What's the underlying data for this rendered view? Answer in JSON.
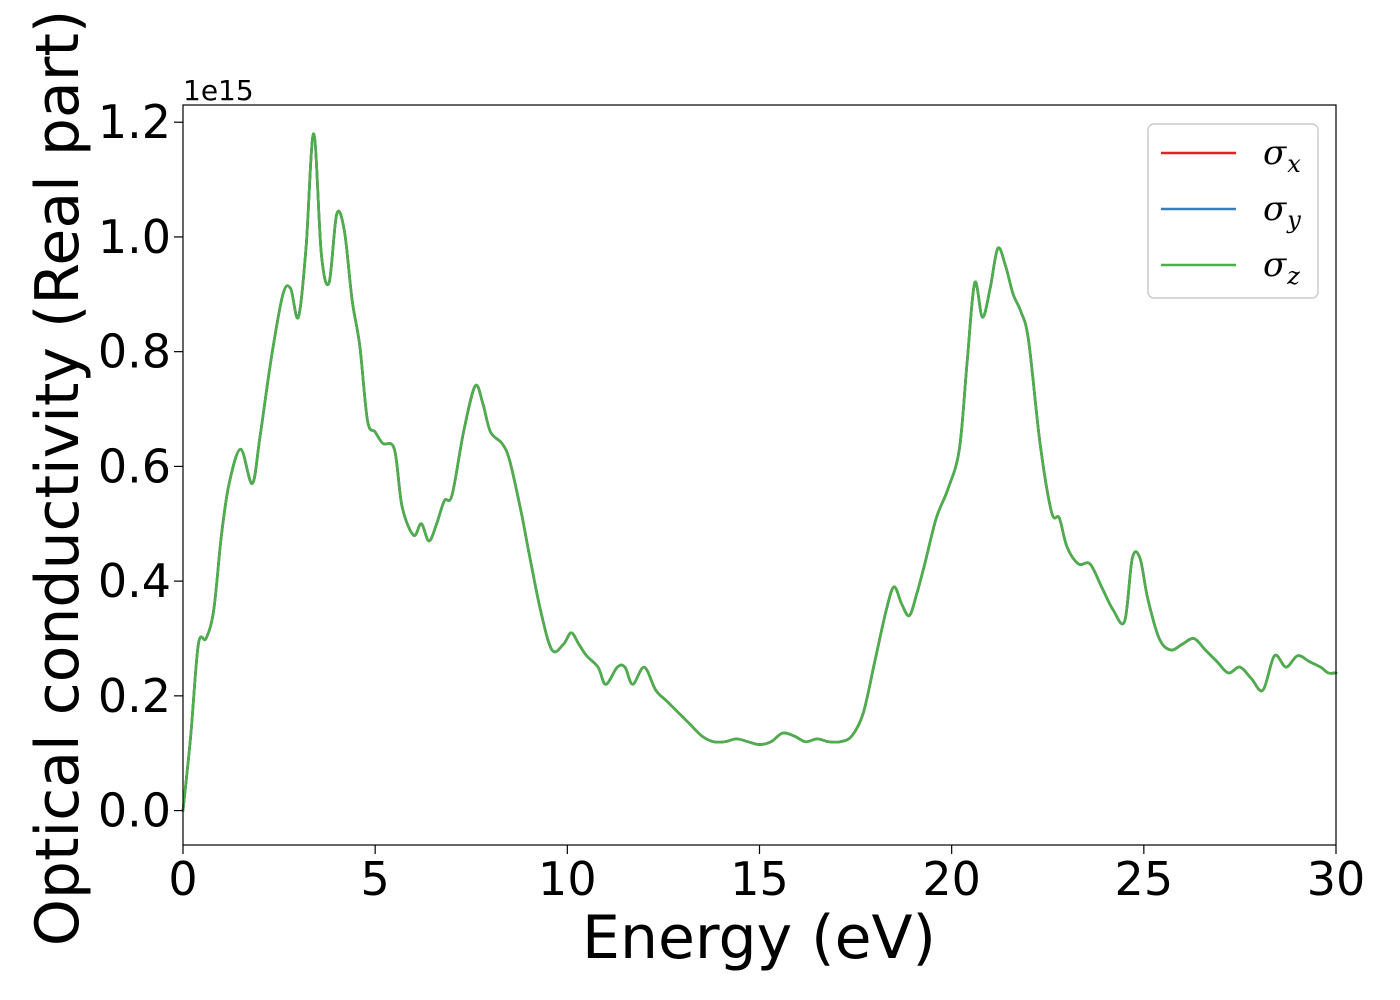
{
  "chart_data": {
    "type": "line",
    "title": "",
    "xlabel": "Energy (eV)",
    "ylabel": "Optical conductivity (Real part)",
    "y_offset_text": "1e15",
    "xlim": [
      0,
      30
    ],
    "ylim": [
      -0.06,
      1.23
    ],
    "x_ticks": [
      0,
      5,
      10,
      15,
      20,
      25,
      30
    ],
    "x_tick_labels": [
      "0",
      "5",
      "10",
      "15",
      "20",
      "25",
      "30"
    ],
    "y_ticks": [
      0.0,
      0.2,
      0.4,
      0.6,
      0.8,
      1.0,
      1.2
    ],
    "y_tick_labels": [
      "0.0",
      "0.2",
      "0.4",
      "0.6",
      "0.8",
      "1.0",
      "1.2"
    ],
    "grid": false,
    "legend_position": "top-right",
    "x": [
      0,
      0.2,
      0.4,
      0.6,
      0.8,
      1.0,
      1.2,
      1.5,
      1.8,
      2.0,
      2.3,
      2.6,
      2.8,
      3.0,
      3.2,
      3.4,
      3.6,
      3.8,
      4.0,
      4.2,
      4.4,
      4.6,
      4.8,
      5.0,
      5.2,
      5.5,
      5.7,
      6.0,
      6.2,
      6.4,
      6.6,
      6.8,
      7.0,
      7.3,
      7.6,
      7.8,
      8.0,
      8.3,
      8.5,
      8.8,
      9.0,
      9.3,
      9.6,
      9.9,
      10.1,
      10.3,
      10.5,
      10.8,
      11.0,
      11.3,
      11.5,
      11.7,
      12.0,
      12.3,
      12.6,
      12.9,
      13.2,
      13.5,
      13.8,
      14.1,
      14.4,
      14.7,
      15.0,
      15.3,
      15.6,
      15.9,
      16.2,
      16.5,
      16.8,
      17.1,
      17.4,
      17.7,
      18.0,
      18.3,
      18.5,
      18.7,
      18.9,
      19.1,
      19.3,
      19.6,
      19.9,
      20.2,
      20.4,
      20.6,
      20.8,
      21.0,
      21.2,
      21.4,
      21.6,
      21.8,
      22.0,
      22.3,
      22.6,
      22.8,
      23.0,
      23.3,
      23.6,
      23.9,
      24.2,
      24.5,
      24.7,
      24.9,
      25.1,
      25.4,
      25.7,
      26.0,
      26.3,
      26.6,
      26.9,
      27.2,
      27.5,
      27.8,
      28.1,
      28.4,
      28.7,
      29.0,
      29.3,
      29.6,
      29.8,
      30.0
    ],
    "series": [
      {
        "name": "σx",
        "color": "#d62728",
        "values": [
          0.0,
          0.13,
          0.29,
          0.3,
          0.35,
          0.48,
          0.57,
          0.63,
          0.57,
          0.65,
          0.79,
          0.9,
          0.91,
          0.86,
          0.98,
          1.18,
          0.97,
          0.92,
          1.04,
          1.01,
          0.89,
          0.81,
          0.68,
          0.66,
          0.64,
          0.63,
          0.53,
          0.48,
          0.5,
          0.47,
          0.5,
          0.54,
          0.55,
          0.66,
          0.74,
          0.71,
          0.66,
          0.64,
          0.61,
          0.52,
          0.45,
          0.35,
          0.28,
          0.29,
          0.31,
          0.29,
          0.27,
          0.25,
          0.22,
          0.25,
          0.25,
          0.22,
          0.25,
          0.21,
          0.19,
          0.17,
          0.15,
          0.13,
          0.12,
          0.12,
          0.125,
          0.12,
          0.115,
          0.12,
          0.135,
          0.13,
          0.12,
          0.125,
          0.12,
          0.12,
          0.13,
          0.17,
          0.26,
          0.35,
          0.39,
          0.36,
          0.34,
          0.38,
          0.43,
          0.51,
          0.56,
          0.63,
          0.78,
          0.92,
          0.86,
          0.91,
          0.98,
          0.95,
          0.9,
          0.87,
          0.82,
          0.64,
          0.52,
          0.51,
          0.46,
          0.43,
          0.43,
          0.39,
          0.35,
          0.33,
          0.44,
          0.44,
          0.37,
          0.3,
          0.28,
          0.29,
          0.3,
          0.28,
          0.26,
          0.24,
          0.25,
          0.23,
          0.21,
          0.27,
          0.25,
          0.27,
          0.26,
          0.25,
          0.24,
          0.24
        ]
      },
      {
        "name": "σy",
        "color": "#3a7cb8",
        "values": [
          0.0,
          0.13,
          0.29,
          0.3,
          0.35,
          0.48,
          0.57,
          0.63,
          0.57,
          0.65,
          0.79,
          0.9,
          0.91,
          0.86,
          0.98,
          1.18,
          0.97,
          0.92,
          1.04,
          1.01,
          0.89,
          0.81,
          0.68,
          0.66,
          0.64,
          0.63,
          0.53,
          0.48,
          0.5,
          0.47,
          0.5,
          0.54,
          0.55,
          0.66,
          0.74,
          0.71,
          0.66,
          0.64,
          0.61,
          0.52,
          0.45,
          0.35,
          0.28,
          0.29,
          0.31,
          0.29,
          0.27,
          0.25,
          0.22,
          0.25,
          0.25,
          0.22,
          0.25,
          0.21,
          0.19,
          0.17,
          0.15,
          0.13,
          0.12,
          0.12,
          0.125,
          0.12,
          0.115,
          0.12,
          0.135,
          0.13,
          0.12,
          0.125,
          0.12,
          0.12,
          0.13,
          0.17,
          0.26,
          0.35,
          0.39,
          0.36,
          0.34,
          0.38,
          0.43,
          0.51,
          0.56,
          0.63,
          0.78,
          0.92,
          0.86,
          0.91,
          0.98,
          0.95,
          0.9,
          0.87,
          0.82,
          0.64,
          0.52,
          0.51,
          0.46,
          0.43,
          0.43,
          0.39,
          0.35,
          0.33,
          0.44,
          0.44,
          0.37,
          0.3,
          0.28,
          0.29,
          0.3,
          0.28,
          0.26,
          0.24,
          0.25,
          0.23,
          0.21,
          0.27,
          0.25,
          0.27,
          0.26,
          0.25,
          0.24,
          0.24
        ]
      },
      {
        "name": "σz",
        "color": "#4daf4a",
        "values": [
          0.0,
          0.13,
          0.29,
          0.3,
          0.35,
          0.48,
          0.57,
          0.63,
          0.57,
          0.65,
          0.79,
          0.9,
          0.91,
          0.86,
          0.98,
          1.18,
          0.97,
          0.92,
          1.04,
          1.01,
          0.89,
          0.81,
          0.68,
          0.66,
          0.64,
          0.63,
          0.53,
          0.48,
          0.5,
          0.47,
          0.5,
          0.54,
          0.55,
          0.66,
          0.74,
          0.71,
          0.66,
          0.64,
          0.61,
          0.52,
          0.45,
          0.35,
          0.28,
          0.29,
          0.31,
          0.29,
          0.27,
          0.25,
          0.22,
          0.25,
          0.25,
          0.22,
          0.25,
          0.21,
          0.19,
          0.17,
          0.15,
          0.13,
          0.12,
          0.12,
          0.125,
          0.12,
          0.115,
          0.12,
          0.135,
          0.13,
          0.12,
          0.125,
          0.12,
          0.12,
          0.13,
          0.17,
          0.26,
          0.35,
          0.39,
          0.36,
          0.34,
          0.38,
          0.43,
          0.51,
          0.56,
          0.63,
          0.78,
          0.92,
          0.86,
          0.91,
          0.98,
          0.95,
          0.9,
          0.87,
          0.82,
          0.64,
          0.52,
          0.51,
          0.46,
          0.43,
          0.43,
          0.39,
          0.35,
          0.33,
          0.44,
          0.44,
          0.37,
          0.3,
          0.28,
          0.29,
          0.3,
          0.28,
          0.26,
          0.24,
          0.25,
          0.23,
          0.21,
          0.27,
          0.25,
          0.27,
          0.26,
          0.25,
          0.24,
          0.24
        ]
      }
    ],
    "legend": [
      {
        "symbol": "σ",
        "sub": "x"
      },
      {
        "symbol": "σ",
        "sub": "y"
      },
      {
        "symbol": "σ",
        "sub": "z"
      }
    ]
  }
}
